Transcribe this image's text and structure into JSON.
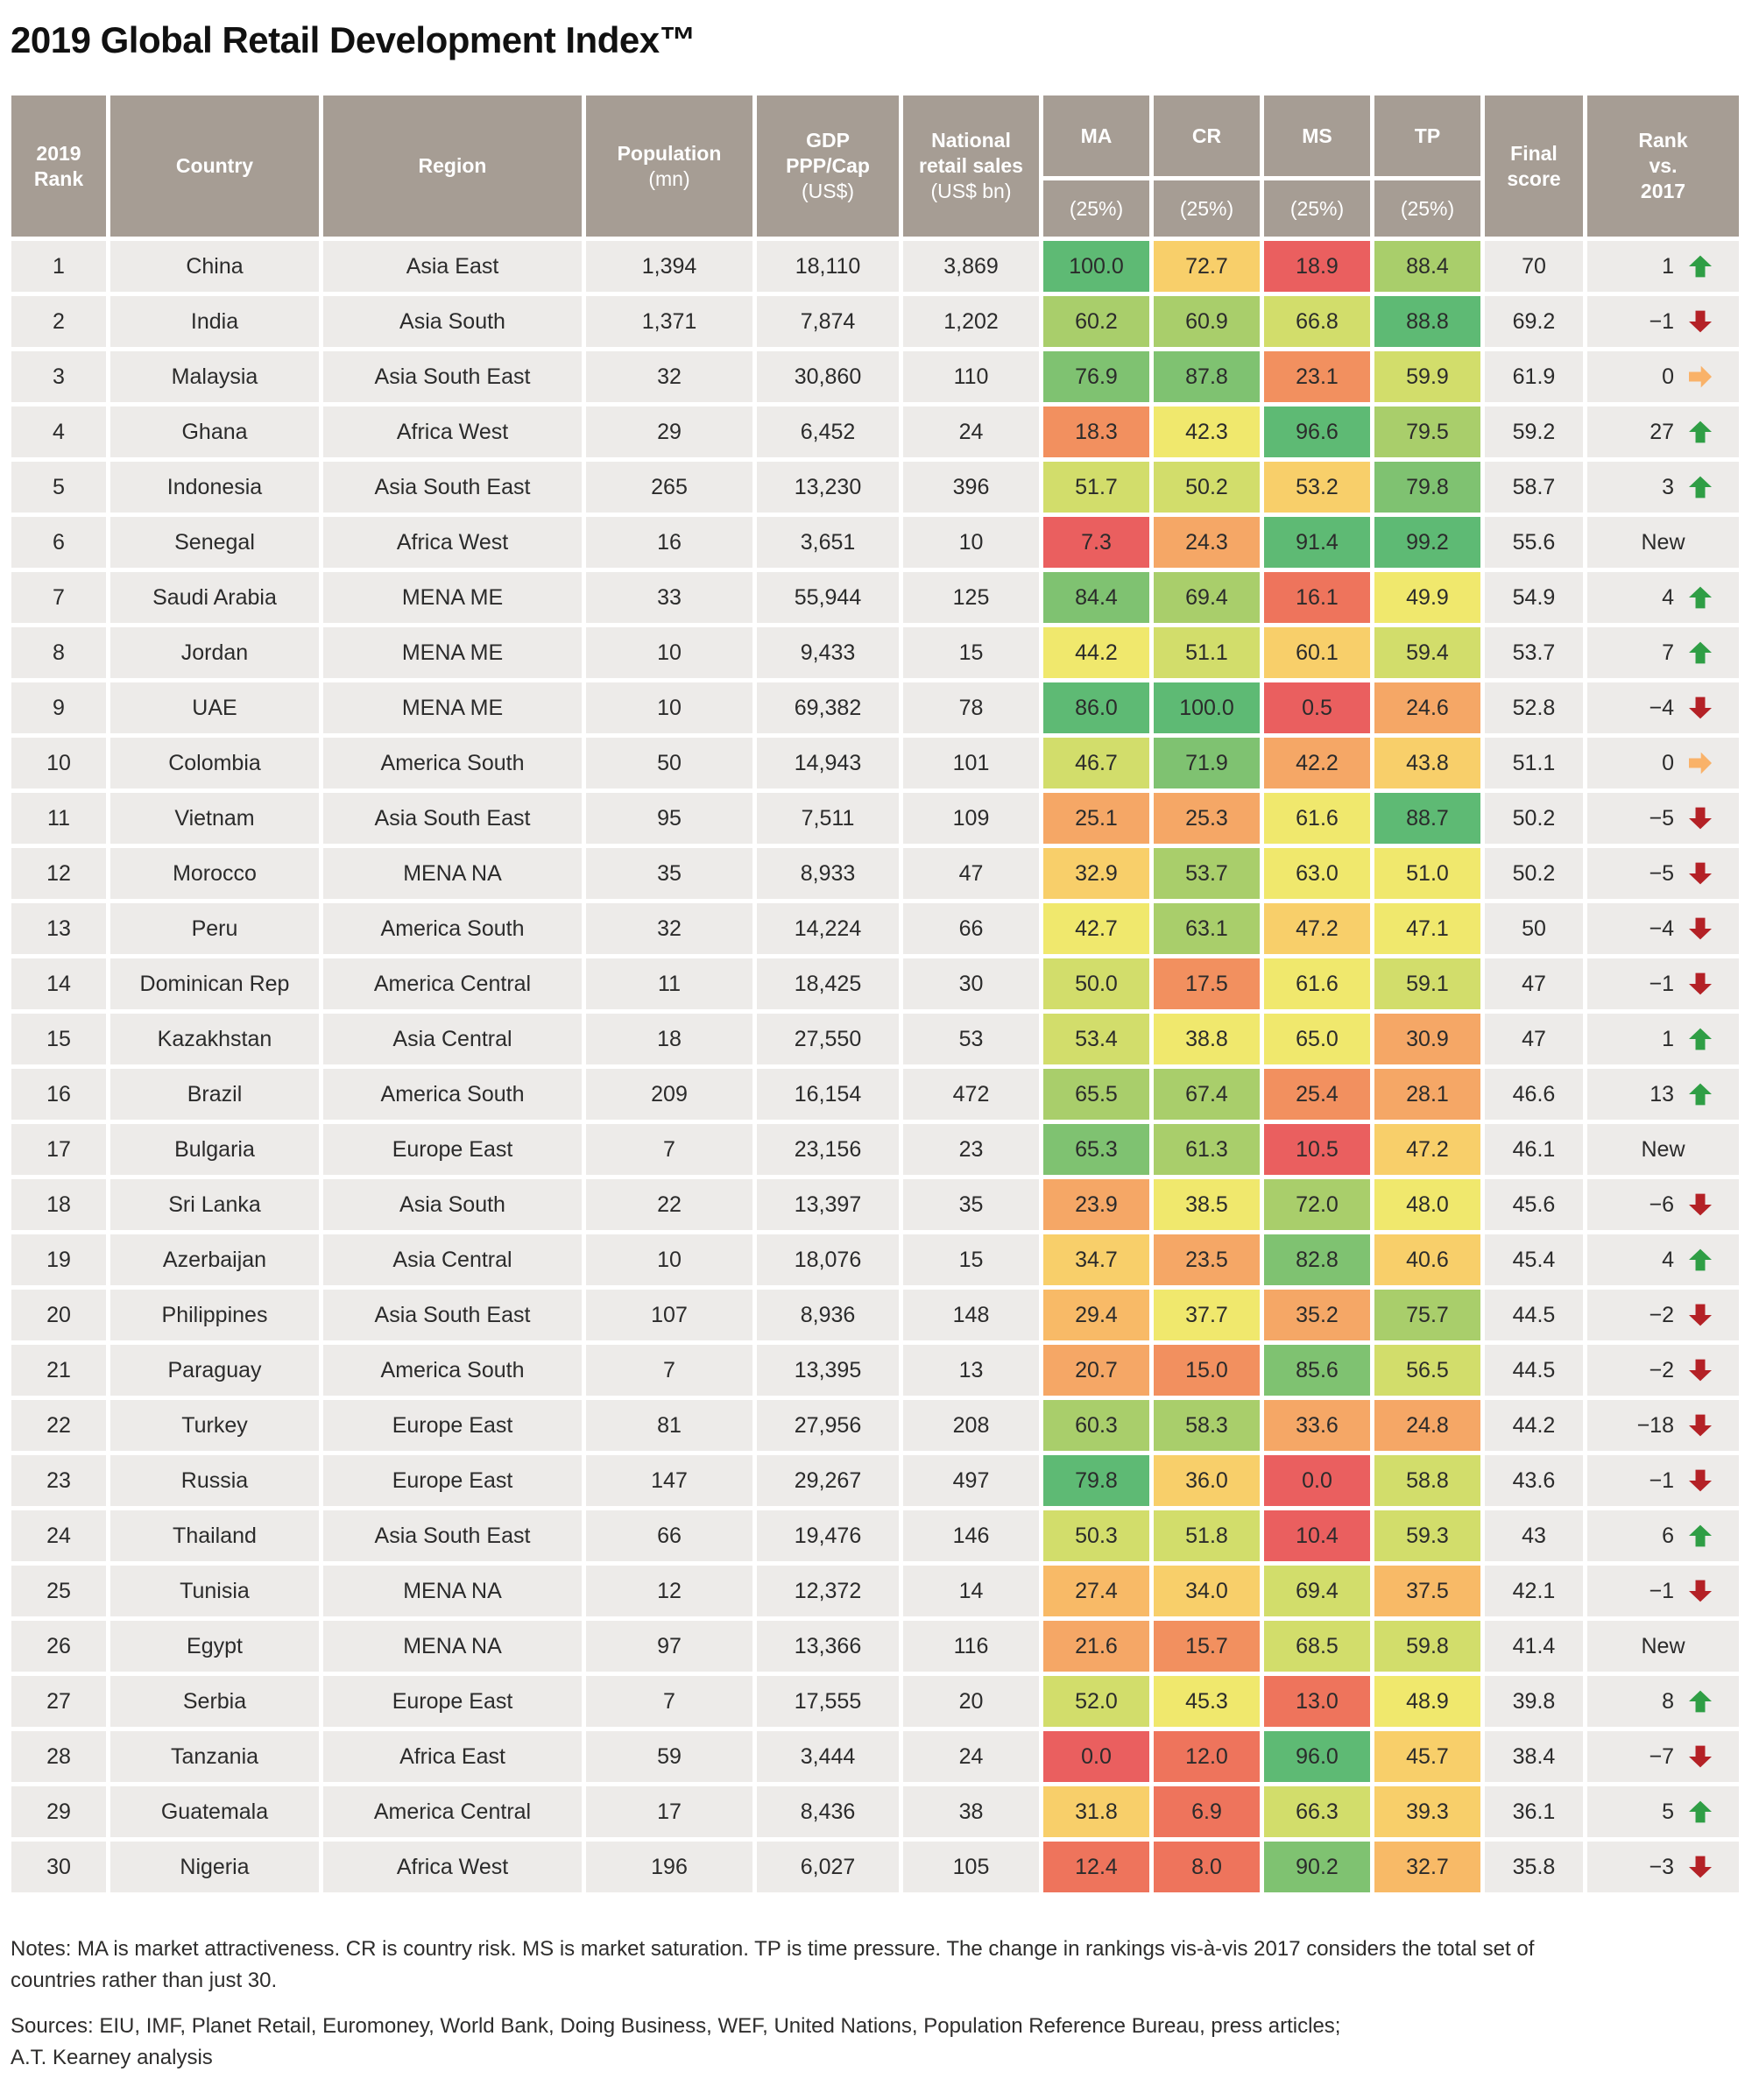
{
  "title": "2019 Global Retail Development Index™",
  "colors": {
    "header_bg": "#a69d94",
    "header_text": "#ffffff",
    "row_bg": "#edebe9",
    "text": "#2b2b2b",
    "arrow_up": "#2f9e45",
    "arrow_down": "#b42126",
    "arrow_right": "#f9b269",
    "scale": {
      "g1": "#5eba74",
      "g2": "#7fc271",
      "g3": "#a9ce6b",
      "yg": "#d2dd6b",
      "y": "#f0e86d",
      "a2": "#f8cf6a",
      "a1": "#f8ba67",
      "o2": "#f5a766",
      "o1": "#f2905f",
      "r2": "#ee745c",
      "r": "#ea5f5f"
    }
  },
  "columns": {
    "rank_lines": [
      "2019",
      "Rank"
    ],
    "country": "Country",
    "region": "Region",
    "population": "Population",
    "population_sub": "(mn)",
    "gdp": "GDP PPP/Cap",
    "gdp_sub": "(US$)",
    "retail": "National retail sales",
    "retail_sub": "(US$ bn)",
    "metrics": [
      "MA",
      "CR",
      "MS",
      "TP"
    ],
    "metric_sub": "(25%)",
    "final_lines": [
      "Final",
      "score"
    ],
    "rankvs_lines": [
      "Rank",
      "vs.",
      "2017"
    ]
  },
  "rows": [
    {
      "rank": "1",
      "country": "China",
      "region": "Asia East",
      "population": "1,394",
      "gdp": "18,110",
      "retail_sales": "3,869",
      "scores": [
        [
          "100.0",
          "g1"
        ],
        [
          "72.7",
          "a2"
        ],
        [
          "18.9",
          "r"
        ],
        [
          "88.4",
          "g3"
        ]
      ],
      "final": "70",
      "change": "1",
      "dir": "up"
    },
    {
      "rank": "2",
      "country": "India",
      "region": "Asia South",
      "population": "1,371",
      "gdp": "7,874",
      "retail_sales": "1,202",
      "scores": [
        [
          "60.2",
          "g3"
        ],
        [
          "60.9",
          "g3"
        ],
        [
          "66.8",
          "yg"
        ],
        [
          "88.8",
          "g1"
        ]
      ],
      "final": "69.2",
      "change": "−1",
      "dir": "down"
    },
    {
      "rank": "3",
      "country": "Malaysia",
      "region": "Asia South East",
      "population": "32",
      "gdp": "30,860",
      "retail_sales": "110",
      "scores": [
        [
          "76.9",
          "g2"
        ],
        [
          "87.8",
          "g2"
        ],
        [
          "23.1",
          "o1"
        ],
        [
          "59.9",
          "yg"
        ]
      ],
      "final": "61.9",
      "change": "0",
      "dir": "right"
    },
    {
      "rank": "4",
      "country": "Ghana",
      "region": "Africa West",
      "population": "29",
      "gdp": "6,452",
      "retail_sales": "24",
      "scores": [
        [
          "18.3",
          "o1"
        ],
        [
          "42.3",
          "y"
        ],
        [
          "96.6",
          "g1"
        ],
        [
          "79.5",
          "g3"
        ]
      ],
      "final": "59.2",
      "change": "27",
      "dir": "up"
    },
    {
      "rank": "5",
      "country": "Indonesia",
      "region": "Asia South East",
      "population": "265",
      "gdp": "13,230",
      "retail_sales": "396",
      "scores": [
        [
          "51.7",
          "yg"
        ],
        [
          "50.2",
          "yg"
        ],
        [
          "53.2",
          "a2"
        ],
        [
          "79.8",
          "g2"
        ]
      ],
      "final": "58.7",
      "change": "3",
      "dir": "up"
    },
    {
      "rank": "6",
      "country": "Senegal",
      "region": "Africa West",
      "population": "16",
      "gdp": "3,651",
      "retail_sales": "10",
      "scores": [
        [
          "7.3",
          "r"
        ],
        [
          "24.3",
          "o2"
        ],
        [
          "91.4",
          "g1"
        ],
        [
          "99.2",
          "g1"
        ]
      ],
      "final": "55.6",
      "change": "New",
      "dir": "new"
    },
    {
      "rank": "7",
      "country": "Saudi Arabia",
      "region": "MENA ME",
      "population": "33",
      "gdp": "55,944",
      "retail_sales": "125",
      "scores": [
        [
          "84.4",
          "g2"
        ],
        [
          "69.4",
          "g3"
        ],
        [
          "16.1",
          "r2"
        ],
        [
          "49.9",
          "y"
        ]
      ],
      "final": "54.9",
      "change": "4",
      "dir": "up"
    },
    {
      "rank": "8",
      "country": "Jordan",
      "region": "MENA ME",
      "population": "10",
      "gdp": "9,433",
      "retail_sales": "15",
      "scores": [
        [
          "44.2",
          "y"
        ],
        [
          "51.1",
          "yg"
        ],
        [
          "60.1",
          "a2"
        ],
        [
          "59.4",
          "yg"
        ]
      ],
      "final": "53.7",
      "change": "7",
      "dir": "up"
    },
    {
      "rank": "9",
      "country": "UAE",
      "region": "MENA ME",
      "population": "10",
      "gdp": "69,382",
      "retail_sales": "78",
      "scores": [
        [
          "86.0",
          "g1"
        ],
        [
          "100.0",
          "g1"
        ],
        [
          "0.5",
          "r"
        ],
        [
          "24.6",
          "o2"
        ]
      ],
      "final": "52.8",
      "change": "−4",
      "dir": "down"
    },
    {
      "rank": "10",
      "country": "Colombia",
      "region": "America South",
      "population": "50",
      "gdp": "14,943",
      "retail_sales": "101",
      "scores": [
        [
          "46.7",
          "yg"
        ],
        [
          "71.9",
          "g2"
        ],
        [
          "42.2",
          "o2"
        ],
        [
          "43.8",
          "a2"
        ]
      ],
      "final": "51.1",
      "change": "0",
      "dir": "right"
    },
    {
      "rank": "11",
      "country": "Vietnam",
      "region": "Asia South East",
      "population": "95",
      "gdp": "7,511",
      "retail_sales": "109",
      "scores": [
        [
          "25.1",
          "o2"
        ],
        [
          "25.3",
          "o2"
        ],
        [
          "61.6",
          "y"
        ],
        [
          "88.7",
          "g1"
        ]
      ],
      "final": "50.2",
      "change": "−5",
      "dir": "down"
    },
    {
      "rank": "12",
      "country": "Morocco",
      "region": "MENA NA",
      "population": "35",
      "gdp": "8,933",
      "retail_sales": "47",
      "scores": [
        [
          "32.9",
          "a2"
        ],
        [
          "53.7",
          "g3"
        ],
        [
          "63.0",
          "y"
        ],
        [
          "51.0",
          "y"
        ]
      ],
      "final": "50.2",
      "change": "−5",
      "dir": "down"
    },
    {
      "rank": "13",
      "country": "Peru",
      "region": "America South",
      "population": "32",
      "gdp": "14,224",
      "retail_sales": "66",
      "scores": [
        [
          "42.7",
          "y"
        ],
        [
          "63.1",
          "g3"
        ],
        [
          "47.2",
          "a2"
        ],
        [
          "47.1",
          "y"
        ]
      ],
      "final": "50",
      "change": "−4",
      "dir": "down"
    },
    {
      "rank": "14",
      "country": "Dominican Rep",
      "region": "America Central",
      "population": "11",
      "gdp": "18,425",
      "retail_sales": "30",
      "scores": [
        [
          "50.0",
          "yg"
        ],
        [
          "17.5",
          "o1"
        ],
        [
          "61.6",
          "y"
        ],
        [
          "59.1",
          "yg"
        ]
      ],
      "final": "47",
      "change": "−1",
      "dir": "down"
    },
    {
      "rank": "15",
      "country": "Kazakhstan",
      "region": "Asia Central",
      "population": "18",
      "gdp": "27,550",
      "retail_sales": "53",
      "scores": [
        [
          "53.4",
          "yg"
        ],
        [
          "38.8",
          "y"
        ],
        [
          "65.0",
          "y"
        ],
        [
          "30.9",
          "o2"
        ]
      ],
      "final": "47",
      "change": "1",
      "dir": "up"
    },
    {
      "rank": "16",
      "country": "Brazil",
      "region": "America South",
      "population": "209",
      "gdp": "16,154",
      "retail_sales": "472",
      "scores": [
        [
          "65.5",
          "g3"
        ],
        [
          "67.4",
          "g3"
        ],
        [
          "25.4",
          "o1"
        ],
        [
          "28.1",
          "o2"
        ]
      ],
      "final": "46.6",
      "change": "13",
      "dir": "up"
    },
    {
      "rank": "17",
      "country": "Bulgaria",
      "region": "Europe East",
      "population": "7",
      "gdp": "23,156",
      "retail_sales": "23",
      "scores": [
        [
          "65.3",
          "g2"
        ],
        [
          "61.3",
          "g3"
        ],
        [
          "10.5",
          "r"
        ],
        [
          "47.2",
          "a2"
        ]
      ],
      "final": "46.1",
      "change": "New",
      "dir": "new"
    },
    {
      "rank": "18",
      "country": "Sri Lanka",
      "region": "Asia South",
      "population": "22",
      "gdp": "13,397",
      "retail_sales": "35",
      "scores": [
        [
          "23.9",
          "o2"
        ],
        [
          "38.5",
          "y"
        ],
        [
          "72.0",
          "g3"
        ],
        [
          "48.0",
          "y"
        ]
      ],
      "final": "45.6",
      "change": "−6",
      "dir": "down"
    },
    {
      "rank": "19",
      "country": "Azerbaijan",
      "region": "Asia Central",
      "population": "10",
      "gdp": "18,076",
      "retail_sales": "15",
      "scores": [
        [
          "34.7",
          "a2"
        ],
        [
          "23.5",
          "o2"
        ],
        [
          "82.8",
          "g2"
        ],
        [
          "40.6",
          "a2"
        ]
      ],
      "final": "45.4",
      "change": "4",
      "dir": "up"
    },
    {
      "rank": "20",
      "country": "Philippines",
      "region": "Asia South East",
      "population": "107",
      "gdp": "8,936",
      "retail_sales": "148",
      "scores": [
        [
          "29.4",
          "a1"
        ],
        [
          "37.7",
          "y"
        ],
        [
          "35.2",
          "o2"
        ],
        [
          "75.7",
          "g3"
        ]
      ],
      "final": "44.5",
      "change": "−2",
      "dir": "down"
    },
    {
      "rank": "21",
      "country": "Paraguay",
      "region": "America South",
      "population": "7",
      "gdp": "13,395",
      "retail_sales": "13",
      "scores": [
        [
          "20.7",
          "o2"
        ],
        [
          "15.0",
          "o1"
        ],
        [
          "85.6",
          "g2"
        ],
        [
          "56.5",
          "yg"
        ]
      ],
      "final": "44.5",
      "change": "−2",
      "dir": "down"
    },
    {
      "rank": "22",
      "country": "Turkey",
      "region": "Europe East",
      "population": "81",
      "gdp": "27,956",
      "retail_sales": "208",
      "scores": [
        [
          "60.3",
          "g3"
        ],
        [
          "58.3",
          "g3"
        ],
        [
          "33.6",
          "o2"
        ],
        [
          "24.8",
          "o2"
        ]
      ],
      "final": "44.2",
      "change": "−18",
      "dir": "down"
    },
    {
      "rank": "23",
      "country": "Russia",
      "region": "Europe East",
      "population": "147",
      "gdp": "29,267",
      "retail_sales": "497",
      "scores": [
        [
          "79.8",
          "g1"
        ],
        [
          "36.0",
          "a2"
        ],
        [
          "0.0",
          "r"
        ],
        [
          "58.8",
          "yg"
        ]
      ],
      "final": "43.6",
      "change": "−1",
      "dir": "down"
    },
    {
      "rank": "24",
      "country": "Thailand",
      "region": "Asia South East",
      "population": "66",
      "gdp": "19,476",
      "retail_sales": "146",
      "scores": [
        [
          "50.3",
          "yg"
        ],
        [
          "51.8",
          "yg"
        ],
        [
          "10.4",
          "r"
        ],
        [
          "59.3",
          "yg"
        ]
      ],
      "final": "43",
      "change": "6",
      "dir": "up"
    },
    {
      "rank": "25",
      "country": "Tunisia",
      "region": "MENA NA",
      "population": "12",
      "gdp": "12,372",
      "retail_sales": "14",
      "scores": [
        [
          "27.4",
          "a1"
        ],
        [
          "34.0",
          "a2"
        ],
        [
          "69.4",
          "yg"
        ],
        [
          "37.5",
          "a1"
        ]
      ],
      "final": "42.1",
      "change": "−1",
      "dir": "down"
    },
    {
      "rank": "26",
      "country": "Egypt",
      "region": "MENA NA",
      "population": "97",
      "gdp": "13,366",
      "retail_sales": "116",
      "scores": [
        [
          "21.6",
          "o2"
        ],
        [
          "15.7",
          "o1"
        ],
        [
          "68.5",
          "yg"
        ],
        [
          "59.8",
          "yg"
        ]
      ],
      "final": "41.4",
      "change": "New",
      "dir": "new"
    },
    {
      "rank": "27",
      "country": "Serbia",
      "region": "Europe East",
      "population": "7",
      "gdp": "17,555",
      "retail_sales": "20",
      "scores": [
        [
          "52.0",
          "yg"
        ],
        [
          "45.3",
          "y"
        ],
        [
          "13.0",
          "r2"
        ],
        [
          "48.9",
          "y"
        ]
      ],
      "final": "39.8",
      "change": "8",
      "dir": "up"
    },
    {
      "rank": "28",
      "country": "Tanzania",
      "region": "Africa East",
      "population": "59",
      "gdp": "3,444",
      "retail_sales": "24",
      "scores": [
        [
          "0.0",
          "r"
        ],
        [
          "12.0",
          "r2"
        ],
        [
          "96.0",
          "g1"
        ],
        [
          "45.7",
          "a2"
        ]
      ],
      "final": "38.4",
      "change": "−7",
      "dir": "down"
    },
    {
      "rank": "29",
      "country": "Guatemala",
      "region": "America Central",
      "population": "17",
      "gdp": "8,436",
      "retail_sales": "38",
      "scores": [
        [
          "31.8",
          "a2"
        ],
        [
          "6.9",
          "r2"
        ],
        [
          "66.3",
          "yg"
        ],
        [
          "39.3",
          "a2"
        ]
      ],
      "final": "36.1",
      "change": "5",
      "dir": "up"
    },
    {
      "rank": "30",
      "country": "Nigeria",
      "region": "Africa West",
      "population": "196",
      "gdp": "6,027",
      "retail_sales": "105",
      "scores": [
        [
          "12.4",
          "r2"
        ],
        [
          "8.0",
          "r2"
        ],
        [
          "90.2",
          "g2"
        ],
        [
          "32.7",
          "a1"
        ]
      ],
      "final": "35.8",
      "change": "−3",
      "dir": "down"
    }
  ],
  "notes": "Notes: MA is market attractiveness. CR is country risk. MS is market saturation. TP is time pressure. The change in rankings vis-à-vis 2017 considers the total set of countries rather than just 30.",
  "sources": "Sources: EIU, IMF, Planet Retail, Euromoney, World Bank, Doing Business, WEF, United Nations, Population Reference Bureau, press articles;",
  "sources_line2": "A.T. Kearney analysis"
}
